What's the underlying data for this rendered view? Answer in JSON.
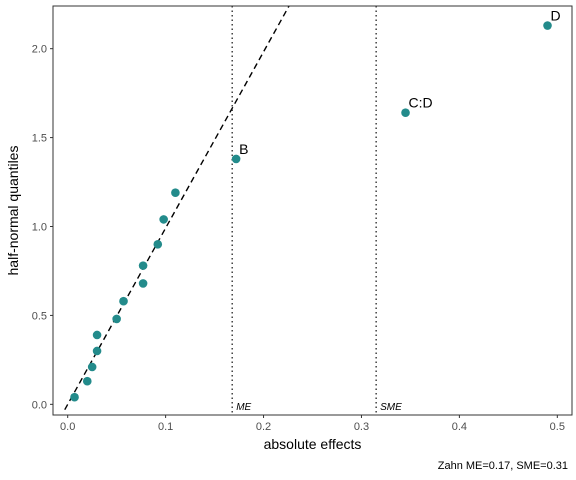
{
  "chart_data": {
    "type": "scatter",
    "xlabel": "absolute effects",
    "ylabel": "half-normal quantiles",
    "caption": "Zahn ME=0.17, SME=0.31",
    "xlim": [
      -0.015,
      0.515
    ],
    "ylim": [
      -0.06,
      2.24
    ],
    "x_ticks": [
      0.0,
      0.1,
      0.2,
      0.3,
      0.4,
      0.5
    ],
    "x_tick_labels": [
      "0.0",
      "0.1",
      "0.2",
      "0.3",
      "0.4",
      "0.5"
    ],
    "y_ticks": [
      0.0,
      0.5,
      1.0,
      1.5,
      2.0
    ],
    "y_tick_labels": [
      "0.0",
      "0.5",
      "1.0",
      "1.5",
      "2.0"
    ],
    "grid": false,
    "point_color": "#238b8b",
    "points": [
      {
        "x": 0.007,
        "y": 0.04,
        "label": ""
      },
      {
        "x": 0.02,
        "y": 0.13,
        "label": ""
      },
      {
        "x": 0.025,
        "y": 0.21,
        "label": ""
      },
      {
        "x": 0.03,
        "y": 0.3,
        "label": ""
      },
      {
        "x": 0.03,
        "y": 0.39,
        "label": ""
      },
      {
        "x": 0.05,
        "y": 0.48,
        "label": ""
      },
      {
        "x": 0.057,
        "y": 0.58,
        "label": ""
      },
      {
        "x": 0.077,
        "y": 0.68,
        "label": ""
      },
      {
        "x": 0.077,
        "y": 0.78,
        "label": ""
      },
      {
        "x": 0.092,
        "y": 0.9,
        "label": ""
      },
      {
        "x": 0.098,
        "y": 1.04,
        "label": ""
      },
      {
        "x": 0.11,
        "y": 1.19,
        "label": ""
      },
      {
        "x": 0.172,
        "y": 1.38,
        "label": "B"
      },
      {
        "x": 0.345,
        "y": 1.64,
        "label": "C:D"
      },
      {
        "x": 0.49,
        "y": 2.13,
        "label": "D"
      }
    ],
    "reference_line": {
      "style": "dashed",
      "x0": -0.003,
      "y0": -0.03,
      "x1": 0.226,
      "y1": 2.24
    },
    "vlines": [
      {
        "x": 0.168,
        "label": "ME"
      },
      {
        "x": 0.315,
        "label": "SME"
      }
    ]
  }
}
